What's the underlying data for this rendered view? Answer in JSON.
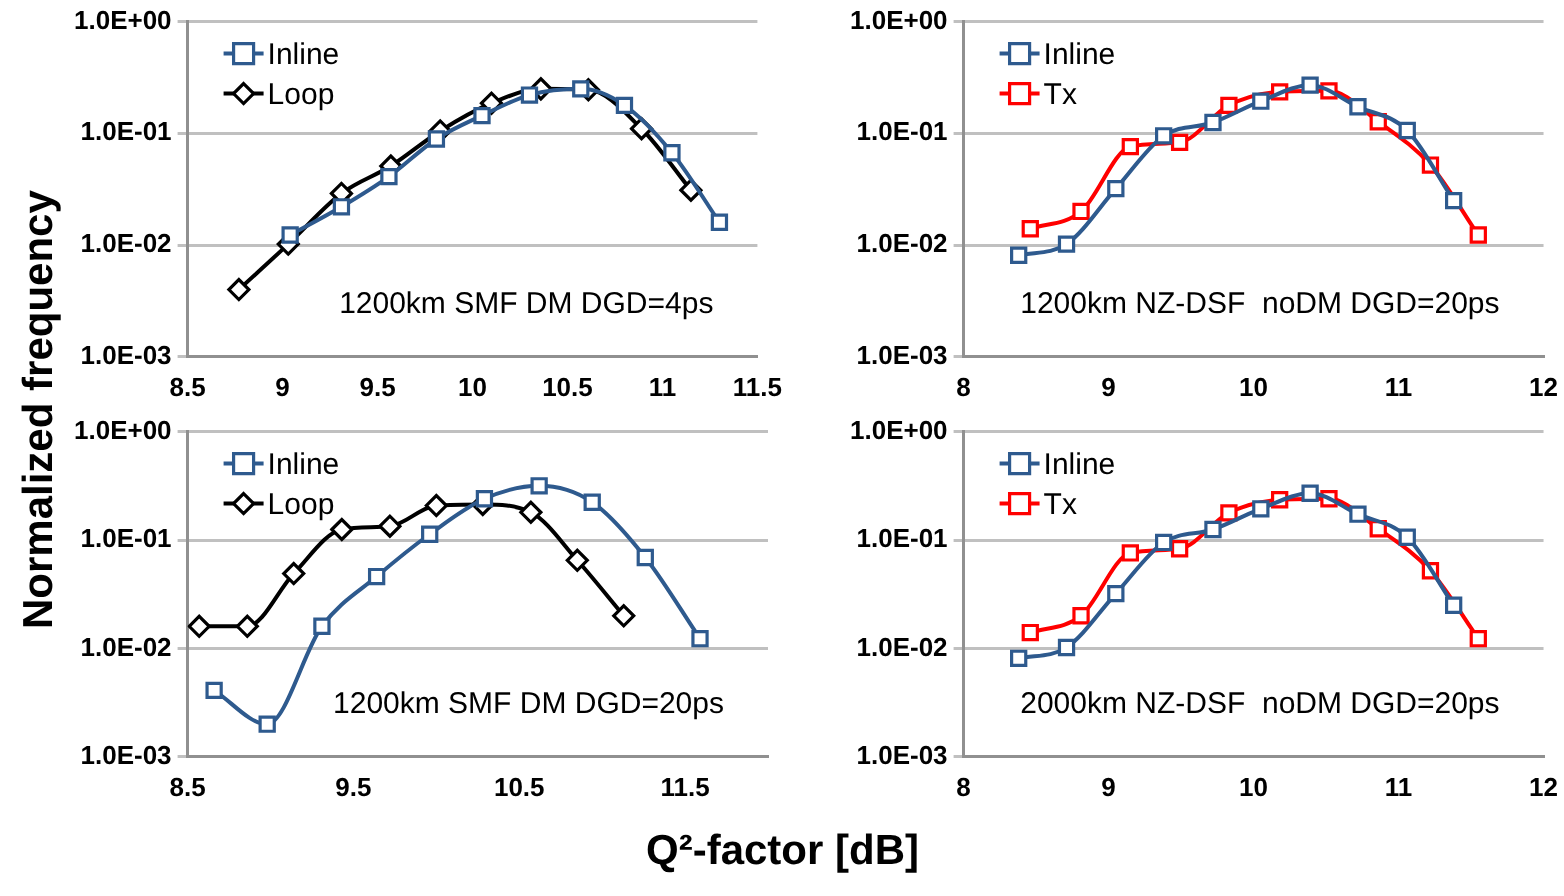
{
  "chart_data": [
    {
      "type": "line",
      "ylabel": "Normalized frequency",
      "annotations": [
        "1200km SMF DM DGD=4ps"
      ],
      "log": "y",
      "grid": "y",
      "legend": "top left",
      "xlim": [
        8.5,
        11.5
      ],
      "xticks": [
        8.5,
        9,
        9.5,
        10,
        10.5,
        11,
        11.5
      ],
      "ylim": [
        0.001,
        1
      ],
      "yticks": [
        {
          "value": 1,
          "label": "1.0E+00"
        },
        {
          "value": 0.1,
          "label": "1.0E-01"
        },
        {
          "value": 0.01,
          "label": "1.0E-02"
        },
        {
          "value": 0.001,
          "label": "1.0E-03"
        }
      ],
      "series": [
        {
          "name": "Inline",
          "color": "#2e5a8e",
          "marker": "square",
          "x": [
            9.04,
            9.31,
            9.56,
            9.81,
            10.05,
            10.3,
            10.57,
            10.8,
            11.05,
            11.3
          ],
          "values": [
            0.0123,
            0.022,
            0.041,
            0.089,
            0.144,
            0.22,
            0.25,
            0.178,
            0.067,
            0.016
          ]
        },
        {
          "name": "Loop",
          "color": "#000000",
          "marker": "diamond",
          "x": [
            8.77,
            9.03,
            9.31,
            9.57,
            9.83,
            10.1,
            10.36,
            10.61,
            10.89,
            11.15
          ],
          "values": [
            0.004,
            0.0102,
            0.029,
            0.051,
            0.105,
            0.186,
            0.25,
            0.245,
            0.11,
            0.031
          ]
        }
      ]
    },
    {
      "type": "line",
      "annotations": [
        "1200km NZ-DSF  noDM DGD=20ps"
      ],
      "log": "y",
      "grid": "y",
      "legend": "top left",
      "xlim": [
        8,
        12
      ],
      "xticks": [
        8,
        9,
        10,
        11,
        12
      ],
      "ylim": [
        0.001,
        1
      ],
      "yticks": [
        {
          "value": 1,
          "label": "1.0E+00"
        },
        {
          "value": 0.1,
          "label": "1.0E-01"
        },
        {
          "value": 0.01,
          "label": "1.0E-02"
        },
        {
          "value": 0.001,
          "label": "1.0E-03"
        }
      ],
      "series": [
        {
          "name": "Inline",
          "color": "#2e5a8e",
          "marker": "square",
          "x": [
            8.38,
            8.71,
            9.05,
            9.38,
            9.72,
            10.05,
            10.39,
            10.72,
            11.06,
            11.38
          ],
          "values": [
            0.0081,
            0.0102,
            0.032,
            0.095,
            0.125,
            0.194,
            0.27,
            0.173,
            0.106,
            0.025
          ]
        },
        {
          "name": "Tx",
          "color": "#ff0000",
          "marker": "square",
          "x": [
            8.46,
            8.81,
            9.15,
            9.49,
            9.83,
            10.18,
            10.52,
            10.86,
            11.22,
            11.55
          ],
          "values": [
            0.014,
            0.02,
            0.076,
            0.083,
            0.178,
            0.235,
            0.24,
            0.127,
            0.052,
            0.0123
          ]
        }
      ]
    },
    {
      "type": "line",
      "xlabel": "Q²-factor [dB]",
      "annotations": [
        "1200km SMF DM DGD=20ps"
      ],
      "log": "y",
      "grid": "y",
      "legend": "top left",
      "xlim": [
        8.5,
        12
      ],
      "xticks": [
        8.5,
        9.5,
        10.5,
        11.5
      ],
      "ylim": [
        0.001,
        1
      ],
      "yticks": [
        {
          "value": 1,
          "label": "1.0E+00"
        },
        {
          "value": 0.1,
          "label": "1.0E-01"
        },
        {
          "value": 0.01,
          "label": "1.0E-02"
        },
        {
          "value": 0.001,
          "label": "1.0E-03"
        }
      ],
      "series": [
        {
          "name": "Inline",
          "color": "#2e5a8e",
          "marker": "square",
          "x": [
            8.66,
            8.98,
            9.31,
            9.64,
            9.96,
            10.29,
            10.62,
            10.94,
            11.26,
            11.59
          ],
          "values": [
            0.0041,
            0.002,
            0.016,
            0.046,
            0.113,
            0.24,
            0.316,
            0.223,
            0.069,
            0.0123
          ]
        },
        {
          "name": "Loop",
          "color": "#000000",
          "marker": "diamond",
          "x": [
            8.57,
            8.86,
            9.14,
            9.43,
            9.72,
            10.0,
            10.28,
            10.57,
            10.85,
            11.13
          ],
          "values": [
            0.016,
            0.016,
            0.049,
            0.125,
            0.134,
            0.208,
            0.213,
            0.18,
            0.065,
            0.02
          ]
        }
      ]
    },
    {
      "type": "line",
      "annotations": [
        "2000km NZ-DSF  noDM DGD=20ps"
      ],
      "log": "y",
      "grid": "y",
      "legend": "top left",
      "xlim": [
        8,
        12
      ],
      "xticks": [
        8,
        9,
        10,
        11,
        12
      ],
      "ylim": [
        0.001,
        1
      ],
      "yticks": [
        {
          "value": 1,
          "label": "1.0E+00"
        },
        {
          "value": 0.1,
          "label": "1.0E-01"
        },
        {
          "value": 0.01,
          "label": "1.0E-02"
        },
        {
          "value": 0.001,
          "label": "1.0E-03"
        }
      ],
      "series": [
        {
          "name": "Inline",
          "color": "#2e5a8e",
          "marker": "square",
          "x": [
            8.38,
            8.71,
            9.05,
            9.38,
            9.72,
            10.05,
            10.39,
            10.72,
            11.06,
            11.38
          ],
          "values": [
            0.0081,
            0.0102,
            0.032,
            0.095,
            0.125,
            0.194,
            0.27,
            0.173,
            0.106,
            0.025
          ]
        },
        {
          "name": "Tx",
          "color": "#ff0000",
          "marker": "square",
          "x": [
            8.46,
            8.81,
            9.15,
            9.49,
            9.83,
            10.18,
            10.52,
            10.86,
            11.22,
            11.55
          ],
          "values": [
            0.014,
            0.02,
            0.076,
            0.083,
            0.178,
            0.235,
            0.24,
            0.127,
            0.052,
            0.0123
          ]
        }
      ]
    }
  ]
}
